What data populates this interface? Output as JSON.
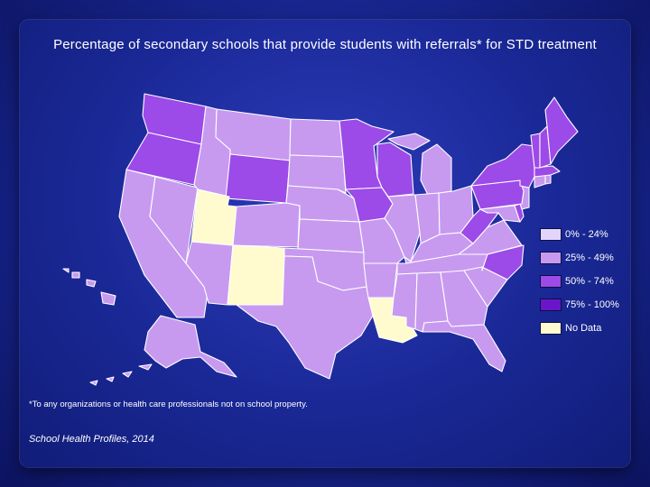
{
  "title": "Percentage of secondary schools that provide students with referrals* for STD treatment",
  "footnote": "*To any organizations or health care professionals not on school property.",
  "source": "School Health Profiles, 2014",
  "legend": [
    {
      "label": "0% - 24%",
      "color": "#e2d4fb"
    },
    {
      "label": "25% - 49%",
      "color": "#c79af0"
    },
    {
      "label": "50% - 74%",
      "color": "#9c4ae8"
    },
    {
      "label": "75% - 100%",
      "color": "#6a16c8"
    },
    {
      "label": "No Data",
      "color": "#fffbcf"
    }
  ],
  "colors": {
    "c25": "#c79af0",
    "c50": "#9c4ae8",
    "c75": "#6a16c8",
    "nodata": "#fffbcf",
    "border": "#ffffff"
  },
  "states": {
    "WA": "c50",
    "OR": "c50",
    "CA": "c25",
    "NV": "c25",
    "ID": "c25",
    "MT": "c25",
    "WY": "c50",
    "UT": "nodata",
    "AZ": "c25",
    "CO": "c25",
    "NM": "nodata",
    "ND": "c25",
    "SD": "c25",
    "NE": "c25",
    "KS": "c25",
    "OK": "c25",
    "TX": "c25",
    "MN": "c50",
    "IA": "c50",
    "MO": "c25",
    "AR": "c25",
    "LA": "nodata",
    "WI": "c50",
    "IL": "c25",
    "MI": "c25",
    "IN": "c25",
    "OH": "c25",
    "KY": "c25",
    "TN": "c25",
    "MS": "c25",
    "AL": "c25",
    "GA": "c25",
    "FL": "c25",
    "SC": "c25",
    "NC": "c50",
    "VA": "c25",
    "WV": "c50",
    "MD": "c25",
    "DE": "c50",
    "NJ": "c25",
    "PA": "c50",
    "NY": "c50",
    "CT": "c25",
    "RI": "c25",
    "MA": "c50",
    "VT": "c50",
    "NH": "c50",
    "ME": "c50",
    "AK": "c25",
    "HI": "c25"
  }
}
